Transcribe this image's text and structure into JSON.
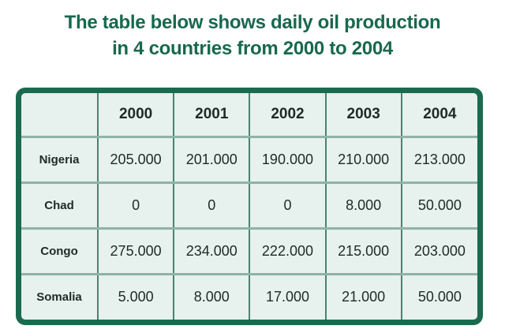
{
  "title": {
    "line1": "The table below shows daily oil production",
    "line2": "in 4 countries from 2000 to 2004",
    "text_color": "#18684c",
    "counter_fill_accent": "#f2dfb2"
  },
  "table": {
    "columns": [
      "",
      "2000",
      "2001",
      "2002",
      "2003",
      "2004"
    ],
    "rows": [
      {
        "label": "Nigeria",
        "values": [
          "205.000",
          "201.000",
          "190.000",
          "210.000",
          "213.000"
        ]
      },
      {
        "label": "Chad",
        "values": [
          "0",
          "0",
          "0",
          "8.000",
          "50.000"
        ]
      },
      {
        "label": "Congo",
        "values": [
          "275.000",
          "234.000",
          "222.000",
          "215.000",
          "203.000"
        ]
      },
      {
        "label": "Somalia",
        "values": [
          "5.000",
          "8.000",
          "17.000",
          "21.000",
          "50.000"
        ]
      }
    ],
    "colors": {
      "frame_border": "#1b6a4f",
      "cell_background": "#e7f1ee",
      "vertical_grid": "#4a8370",
      "horizontal_grid": "#8fb3a8",
      "text": "#1f2926"
    }
  },
  "chart_data": {
    "type": "table",
    "title": "The table below shows daily oil production in 4 countries from 2000 to 2004",
    "categories": [
      "2000",
      "2001",
      "2002",
      "2003",
      "2004"
    ],
    "series": [
      {
        "name": "Nigeria",
        "values": [
          205000,
          201000,
          190000,
          210000,
          213000
        ]
      },
      {
        "name": "Chad",
        "values": [
          0,
          0,
          0,
          8000,
          50000
        ]
      },
      {
        "name": "Congo",
        "values": [
          275000,
          234000,
          222000,
          215000,
          203000
        ]
      },
      {
        "name": "Somalia",
        "values": [
          5000,
          8000,
          17000,
          21000,
          50000
        ]
      }
    ],
    "value_format": "dot thousands separator as displayed (e.g. 205.000)"
  }
}
